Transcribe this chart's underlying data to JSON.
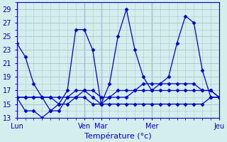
{
  "background_color": "#d4eeed",
  "grid_color": "#aacaca",
  "line_color": "#0000cc",
  "line_width": 0.9,
  "marker": "D",
  "marker_size": 2.5,
  "xlabel": "Température (°c)",
  "xlabel_fontsize": 8,
  "tick_fontsize": 7,
  "xlim": [
    0,
    24
  ],
  "ylim": [
    13,
    30
  ],
  "yticks": [
    13,
    15,
    17,
    19,
    21,
    23,
    25,
    27,
    29
  ],
  "day_labels": [
    "Lun",
    "Ven",
    "Mar",
    "Mer",
    "Jeu"
  ],
  "day_positions": [
    0,
    8,
    10,
    16,
    24
  ],
  "series": [
    [
      24,
      22,
      18,
      16,
      14,
      15,
      17,
      26,
      26,
      23,
      15,
      18,
      25,
      29,
      23,
      19,
      17,
      18,
      19,
      24,
      28,
      27,
      20,
      16,
      16
    ],
    [
      16,
      14,
      14,
      13,
      14,
      14,
      16,
      16,
      16,
      15,
      15,
      15,
      15,
      15,
      15,
      15,
      15,
      15,
      15,
      15,
      15,
      15,
      15,
      16,
      16
    ],
    [
      16,
      16,
      16,
      16,
      16,
      15,
      15,
      16,
      17,
      16,
      15,
      16,
      16,
      16,
      17,
      17,
      17,
      17,
      17,
      17,
      17,
      17,
      17,
      17,
      16
    ],
    [
      16,
      16,
      16,
      16,
      16,
      16,
      16,
      17,
      17,
      17,
      16,
      16,
      17,
      17,
      17,
      18,
      18,
      18,
      18,
      18,
      18,
      18,
      17,
      17,
      16
    ]
  ],
  "figsize": [
    3.2,
    2.0
  ],
  "dpi": 100
}
